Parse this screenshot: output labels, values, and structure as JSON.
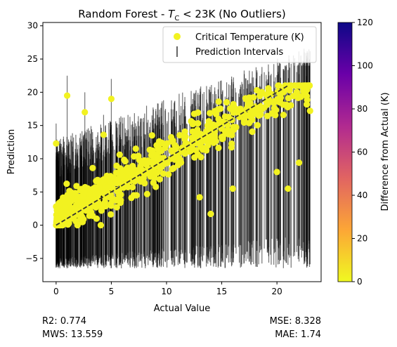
{
  "chart_data": {
    "type": "scatter",
    "title_prefix": "Random Forest - ",
    "title_symbol": "T",
    "title_subscript": "C",
    "title_suffix": " < 23K (No Outliers)",
    "xlabel": "Actual Value",
    "ylabel": "Prediction",
    "xlim": [
      -1.2,
      24.0
    ],
    "ylim": [
      -8.5,
      30.5
    ],
    "xticks": [
      0,
      5,
      10,
      15,
      20
    ],
    "yticks": [
      -5,
      0,
      5,
      10,
      15,
      20,
      25,
      30
    ],
    "reference_line": {
      "x": [
        0,
        21
      ],
      "y": [
        0,
        21
      ],
      "style": "dashed",
      "color": "#333333"
    },
    "series": [
      {
        "name": "Critical Temperature (K)",
        "kind": "points",
        "color": "#f2f221",
        "sample_count": 650,
        "x_range": [
          0,
          23
        ],
        "y_range": [
          0,
          21
        ],
        "fit": "y ≈ 0.9·x + 1.3",
        "outlier_points": [
          [
            1,
            19.5
          ],
          [
            0,
            12.3
          ],
          [
            2.6,
            17
          ],
          [
            5,
            19
          ],
          [
            14.0,
            1.7
          ],
          [
            23,
            17.2
          ],
          [
            20,
            8
          ],
          [
            22,
            9.4
          ],
          [
            21,
            5.5
          ],
          [
            16,
            5.5
          ],
          [
            13,
            4.2
          ],
          [
            4.3,
            13.6
          ]
        ]
      },
      {
        "name": "Prediction Intervals",
        "kind": "error-bars",
        "color": "#000000",
        "lower_bound_range": [
          -6.5,
          -1.5
        ],
        "upper_bound_range": [
          7,
          27
        ]
      }
    ],
    "colorbar": {
      "label": "Difference from Actual (K)",
      "range": [
        0,
        120
      ],
      "ticks": [
        0,
        20,
        40,
        60,
        80,
        100,
        120
      ],
      "colormap": "plasma_r",
      "colors": [
        "#f0f921",
        "#fca636",
        "#e16462",
        "#b12a90",
        "#6a00a8",
        "#0d0887"
      ]
    },
    "legend": {
      "placement": "top-right"
    }
  },
  "stats": {
    "r2": "R2: 0.774",
    "mws": "MWS: 13.559",
    "mse": "MSE: 8.328",
    "mae": "MAE: 1.74"
  }
}
